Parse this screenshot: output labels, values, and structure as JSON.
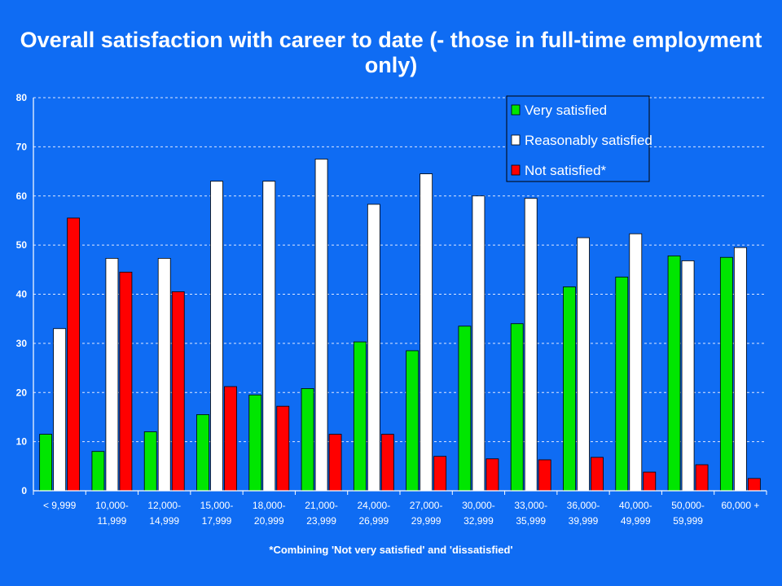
{
  "chart_data": {
    "type": "bar",
    "title": "Overall satisfaction with career to date (- those in full-time employment only)",
    "xlabel": "",
    "ylabel": "",
    "ylim": [
      0,
      80
    ],
    "yticks": [
      0,
      10,
      20,
      30,
      40,
      50,
      60,
      70,
      80
    ],
    "grid": true,
    "legend_position": "top-right",
    "footnote": "*Combining 'Not very satisfied' and 'dissatisfied'",
    "categories": [
      [
        "< 9,999"
      ],
      [
        "10,000-",
        "11,999"
      ],
      [
        "12,000-",
        "14,999"
      ],
      [
        "15,000-",
        "17,999"
      ],
      [
        "18,000-",
        "20,999"
      ],
      [
        "21,000-",
        "23,999"
      ],
      [
        "24,000-",
        "26,999"
      ],
      [
        "27,000-",
        "29,999"
      ],
      [
        "30,000-",
        "32,999"
      ],
      [
        "33,000-",
        "35,999"
      ],
      [
        "36,000-",
        "39,999"
      ],
      [
        "40,000-",
        "49,999"
      ],
      [
        "50,000-",
        "59,999"
      ],
      [
        "60,000 +"
      ]
    ],
    "series": [
      {
        "name": "Very satisfied",
        "color": "#00e600",
        "values": [
          11.5,
          8,
          12,
          15.5,
          19.5,
          20.8,
          30.3,
          28.5,
          33.5,
          34,
          41.5,
          43.5,
          47.8,
          47.5
        ]
      },
      {
        "name": "Reasonably satisfied",
        "color": "#ffffff",
        "values": [
          33,
          47.3,
          47.3,
          63,
          63,
          67.5,
          58.3,
          64.5,
          60,
          59.5,
          51.5,
          52.3,
          46.8,
          49.5
        ]
      },
      {
        "name": "Not satisfied*",
        "color": "#ff0000",
        "values": [
          55.5,
          44.5,
          40.5,
          21.2,
          17.2,
          11.5,
          11.5,
          7,
          6.5,
          6.3,
          6.8,
          3.8,
          5.3,
          2.5
        ]
      }
    ]
  }
}
